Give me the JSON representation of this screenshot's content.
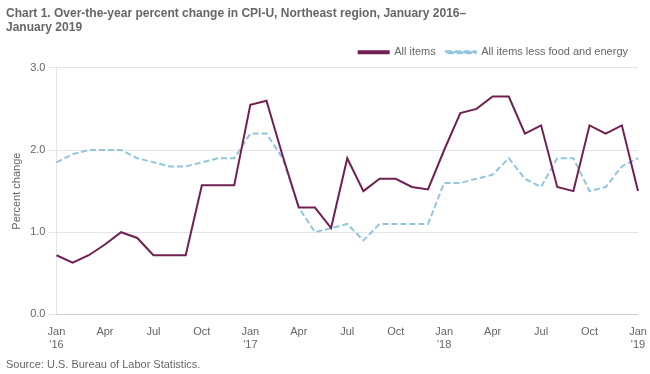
{
  "chart_data": {
    "type": "line",
    "title": "Chart 1. Over-the-year percent change in CPI-U, Northeast region, January 2016–\nJanuary 2019",
    "y_label": "Percent change",
    "source": "Source: U.S. Bureau of Labor Statistics.",
    "categories": [
      "Jan\n'16",
      null,
      null,
      "Apr",
      null,
      null,
      "Jul",
      null,
      null,
      "Oct",
      null,
      null,
      "Jan\n'17",
      null,
      null,
      "Apr",
      null,
      null,
      "Jul",
      null,
      null,
      "Oct",
      null,
      null,
      "Jan\n'18",
      null,
      null,
      "Apr",
      null,
      null,
      "Jul",
      null,
      null,
      "Oct",
      null,
      null,
      "Jan\n'19"
    ],
    "series": [
      {
        "name": "All items",
        "color": "#722052",
        "line_style": "solid",
        "values": [
          0.72,
          0.63,
          0.72,
          0.85,
          1.0,
          0.93,
          0.72,
          0.72,
          0.72,
          1.57,
          1.57,
          1.57,
          2.55,
          2.6,
          1.93,
          1.3,
          1.3,
          1.05,
          1.9,
          1.5,
          1.65,
          1.65,
          1.55,
          1.52,
          2.0,
          2.45,
          2.5,
          2.65,
          2.65,
          2.2,
          2.3,
          1.55,
          1.5,
          2.3,
          2.2,
          2.3,
          1.5
        ]
      },
      {
        "name": "All items less food and energy",
        "color": "#92C5DE",
        "line_style": "dashed",
        "values": [
          1.85,
          1.95,
          2.0,
          2.0,
          2.0,
          1.9,
          1.85,
          1.8,
          1.8,
          1.85,
          1.9,
          1.9,
          2.2,
          2.2,
          1.9,
          1.3,
          1.0,
          1.05,
          1.1,
          0.9,
          1.1,
          1.1,
          1.1,
          1.1,
          1.6,
          1.6,
          1.65,
          1.7,
          1.9,
          1.65,
          1.55,
          1.9,
          1.9,
          1.5,
          1.55,
          1.8,
          1.9
        ]
      }
    ],
    "ylim": [
      0.0,
      3.0
    ],
    "yticks": [
      {
        "value": 0,
        "label": "0.0"
      },
      {
        "value": 1,
        "label": "1.0"
      },
      {
        "value": 2,
        "label": "2.0"
      },
      {
        "value": 3,
        "label": "3.0"
      }
    ],
    "grid": "y",
    "legend": "upper right"
  }
}
